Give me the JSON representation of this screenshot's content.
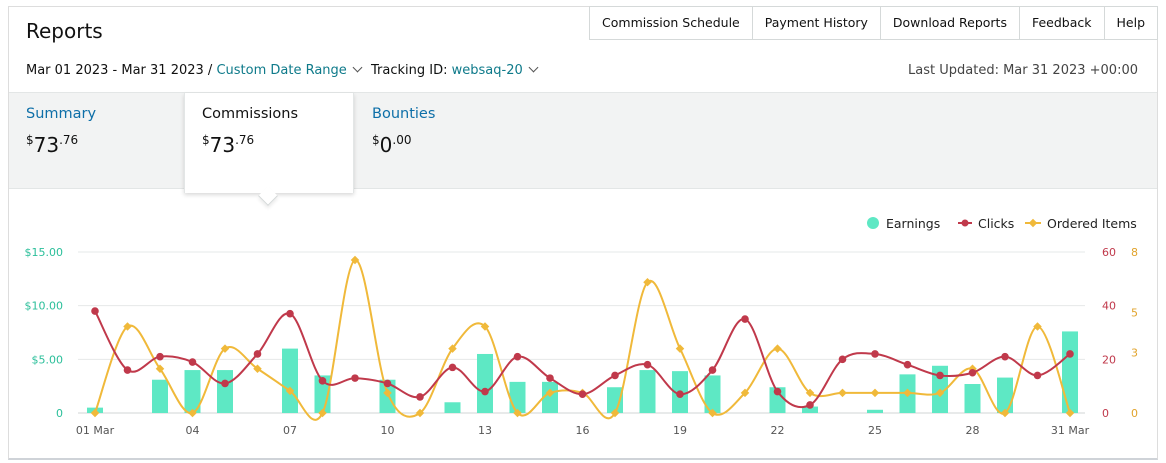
{
  "header": {
    "title": "Reports",
    "links": [
      "Commission Schedule",
      "Payment History",
      "Download Reports",
      "Feedback",
      "Help"
    ]
  },
  "filters": {
    "date_range": "Mar 01 2023 - Mar 31 2023 /",
    "date_range_option": "Custom Date Range",
    "tracking_label": "Tracking ID:",
    "tracking_id": "websaq-20",
    "last_updated": "Last Updated: Mar 31 2023 +00:00"
  },
  "tabs": [
    {
      "label": "Summary",
      "currency": "$",
      "whole": "73",
      "cents": ".76"
    },
    {
      "label": "Commissions",
      "currency": "$",
      "whole": "73",
      "cents": ".76"
    },
    {
      "label": "Bounties",
      "currency": "$",
      "whole": "0",
      "cents": ".00"
    }
  ],
  "colors": {
    "earnings": "#5ee8c4",
    "clicks": "#c0394b",
    "ordered": "#f0b93a",
    "left_axis": "#2bbf9a",
    "right_axis_clicks": "#c0394b",
    "right_axis_ordered": "#e1a32b"
  },
  "chart_data": {
    "type": "bar",
    "legend_position": "top-right",
    "x_ticks": [
      {
        "day": 1,
        "label": "01 Mar"
      },
      {
        "day": 4,
        "label": "04"
      },
      {
        "day": 7,
        "label": "07"
      },
      {
        "day": 10,
        "label": "10"
      },
      {
        "day": 13,
        "label": "13"
      },
      {
        "day": 16,
        "label": "16"
      },
      {
        "day": 19,
        "label": "19"
      },
      {
        "day": 22,
        "label": "22"
      },
      {
        "day": 25,
        "label": "25"
      },
      {
        "day": 28,
        "label": "28"
      },
      {
        "day": 31,
        "label": "31 Mar"
      }
    ],
    "y_left": {
      "ticks": [
        "0",
        "$5.00",
        "$10.00",
        "$15.00"
      ],
      "values": [
        0,
        5,
        10,
        15
      ],
      "max": 15
    },
    "y_right_clicks": {
      "ticks": [
        "0",
        "20",
        "40",
        "60"
      ],
      "values": [
        0,
        20,
        40,
        60
      ],
      "max": 60
    },
    "y_right_ordered": {
      "ticks": [
        "0",
        "3",
        "5",
        "8"
      ],
      "values": [
        0,
        3,
        5,
        8
      ],
      "max": 8
    },
    "series": [
      {
        "name": "Earnings",
        "type": "bar",
        "axis": "left",
        "values": [
          0.5,
          0,
          3.1,
          4.0,
          4.0,
          0,
          6.0,
          3.5,
          0,
          3.1,
          0,
          1.0,
          5.5,
          2.9,
          2.9,
          0,
          2.4,
          4.0,
          3.9,
          3.5,
          0,
          2.4,
          0.6,
          0,
          0.3,
          3.6,
          4.4,
          2.7,
          3.3,
          0,
          7.6
        ]
      },
      {
        "name": "Clicks",
        "type": "line",
        "axis": "right_clicks",
        "values": [
          38,
          16,
          21,
          19,
          11,
          22,
          37,
          12,
          13,
          11,
          6,
          17,
          8,
          21,
          13,
          7,
          14,
          18,
          7,
          16,
          35,
          8,
          3,
          20,
          22,
          18,
          14,
          15,
          21,
          14,
          22
        ]
      },
      {
        "name": "Ordered Items",
        "type": "line",
        "axis": "right_ordered",
        "values": [
          0,
          4.3,
          2.2,
          0,
          3.2,
          2.2,
          1.1,
          0,
          7.6,
          1.0,
          0,
          3.2,
          4.3,
          0,
          1.0,
          1.0,
          0,
          6.5,
          3.2,
          0,
          1.0,
          3.2,
          1.0,
          1.0,
          1.0,
          1.0,
          1.0,
          2.2,
          0,
          4.3,
          0
        ]
      }
    ]
  }
}
